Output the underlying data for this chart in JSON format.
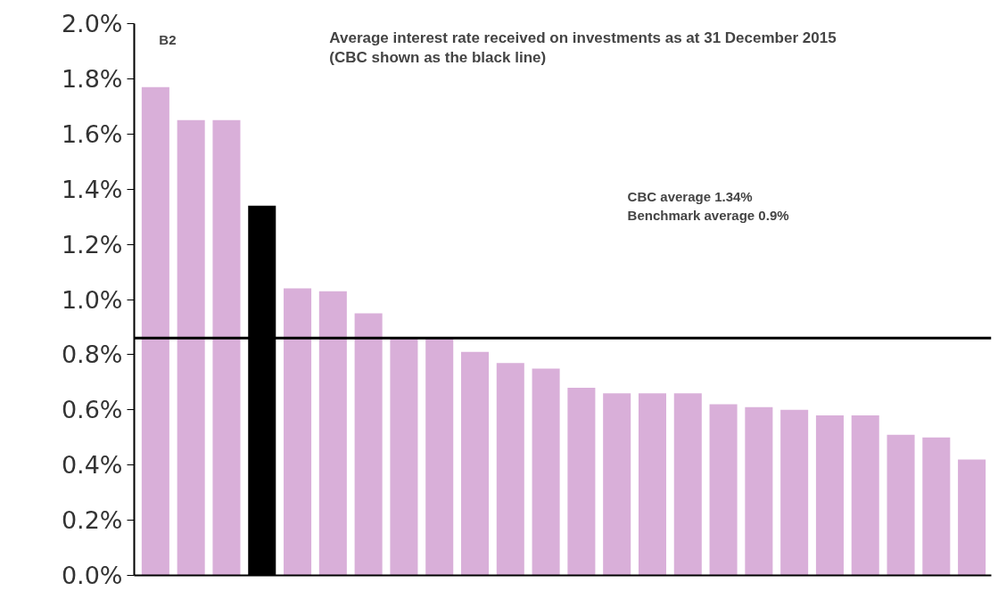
{
  "chart_data": {
    "type": "bar",
    "title": "Average interest rate received on investments as at 31 December 2015  (CBC shown as the black line)",
    "categories": [
      null,
      null,
      null,
      null,
      null,
      null,
      null,
      null,
      null,
      null,
      null,
      null,
      null,
      null,
      null,
      null,
      null,
      null,
      null,
      null,
      null,
      null,
      null,
      null
    ],
    "values": [
      1.77,
      1.65,
      1.65,
      1.34,
      1.04,
      1.03,
      0.95,
      0.86,
      0.86,
      0.81,
      0.77,
      0.75,
      0.68,
      0.66,
      0.66,
      0.66,
      0.62,
      0.61,
      0.6,
      0.58,
      0.58,
      0.51,
      0.5,
      0.42
    ],
    "colors": [
      "#d9afd9",
      "#d9afd9",
      "#d9afd9",
      "#000000",
      "#d9afd9",
      "#d9afd9",
      "#d9afd9",
      "#d9afd9",
      "#d9afd9",
      "#d9afd9",
      "#d9afd9",
      "#d9afd9",
      "#d9afd9",
      "#d9afd9",
      "#d9afd9",
      "#d9afd9",
      "#d9afd9",
      "#d9afd9",
      "#d9afd9",
      "#d9afd9",
      "#d9afd9",
      "#d9afd9",
      "#d9afd9",
      "#d9afd9"
    ],
    "ylim": [
      0,
      2.0
    ],
    "yticks": [
      {
        "value": 0,
        "label": "0.0%"
      },
      {
        "value": 0.2,
        "label": "0.2%"
      },
      {
        "value": 0.4,
        "label": "0.4%"
      },
      {
        "value": 0.6,
        "label": "0.6%"
      },
      {
        "value": 0.8,
        "label": "0.8%"
      },
      {
        "value": 1.0,
        "label": "1.0%"
      },
      {
        "value": 1.2,
        "label": "1.2%"
      },
      {
        "value": 1.4,
        "label": "1.4%"
      },
      {
        "value": 1.6,
        "label": "1.6%"
      },
      {
        "value": 1.8,
        "label": "1.8%"
      },
      {
        "value": 2.0,
        "label": "2.0%"
      }
    ],
    "ref_lines": [
      {
        "axis": "y",
        "value": 0.86,
        "label": null,
        "color": "#000000"
      }
    ],
    "annotations": [
      "B2",
      "CBC average 1.34%",
      "Benchmark average  0.9%"
    ],
    "grid": false
  }
}
